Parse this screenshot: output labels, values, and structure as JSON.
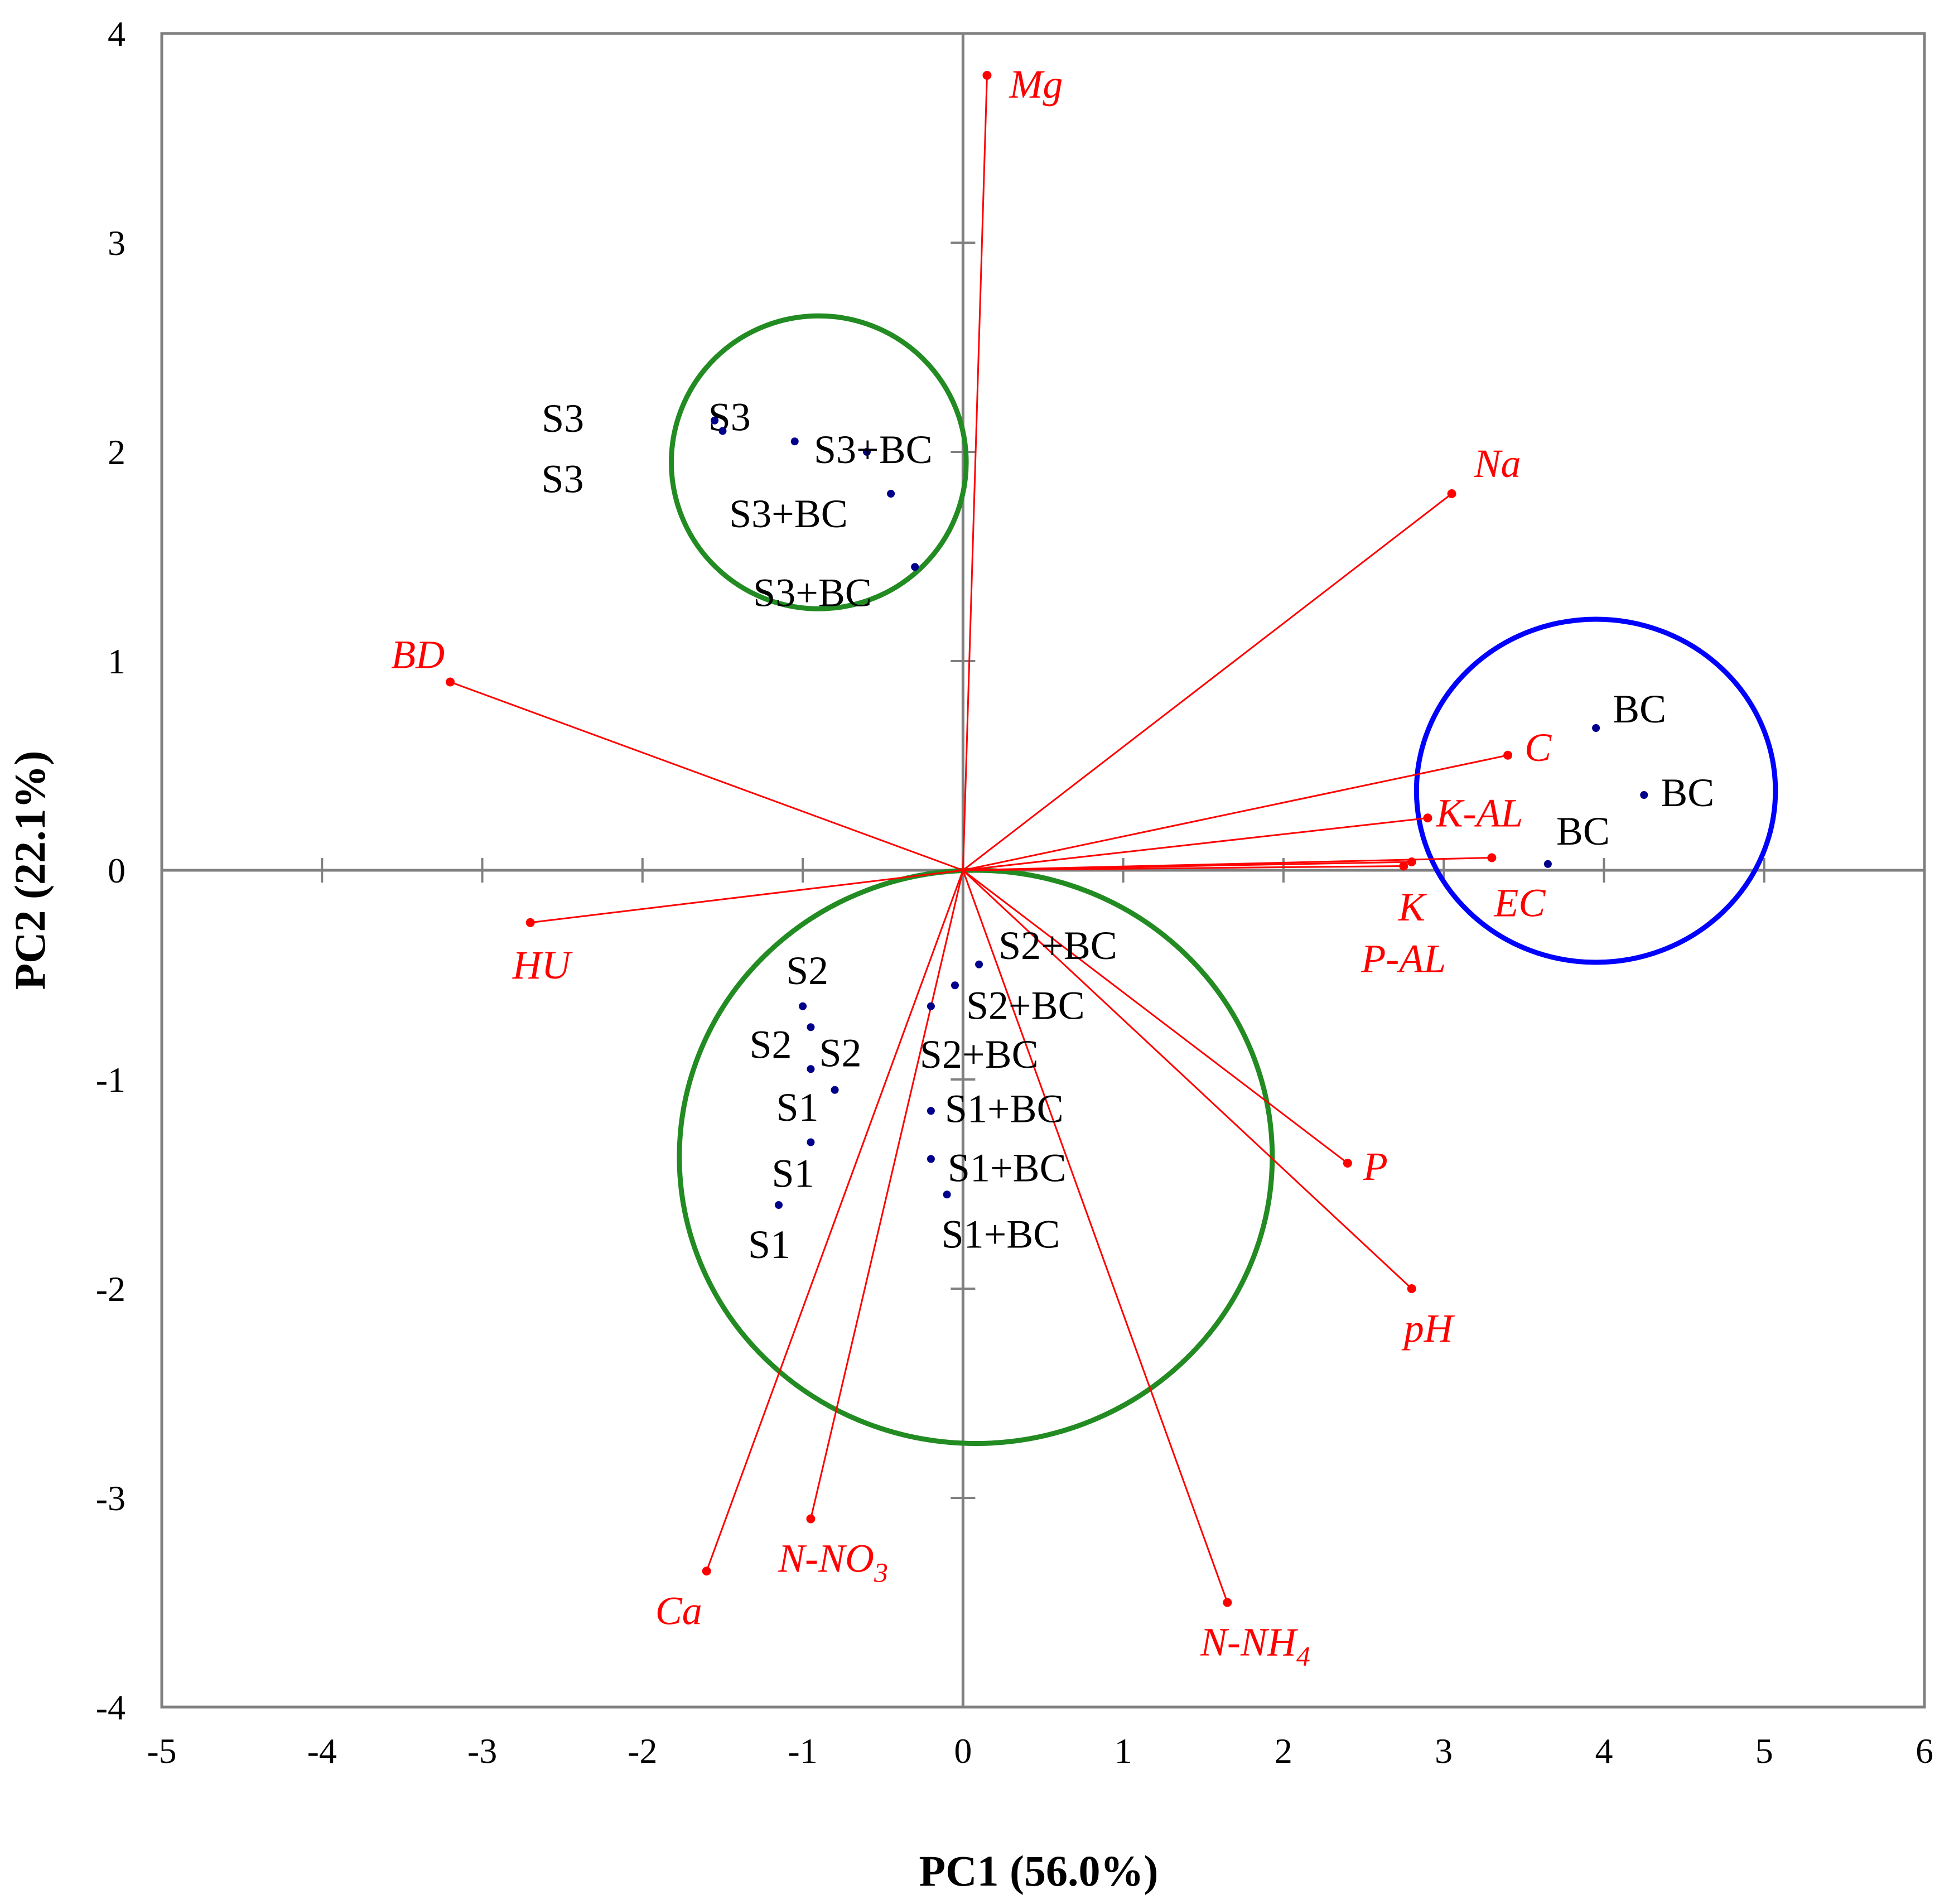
{
  "chart_data": {
    "type": "scatter",
    "subtype": "pca-biplot",
    "xlabel": "PC1 (56.0%)",
    "ylabel": "PC2 (22.1%)",
    "xlim": [
      -5,
      6
    ],
    "ylim": [
      -4,
      4
    ],
    "xticks": [
      -5,
      -4,
      -3,
      -2,
      -1,
      0,
      1,
      2,
      3,
      4,
      5,
      6
    ],
    "yticks": [
      -4,
      -3,
      -2,
      -1,
      0,
      1,
      2,
      3,
      4
    ],
    "grid": false,
    "colors": {
      "loadings": "#ff0000",
      "scores": "#00008b",
      "group_s3": "#228b22",
      "group_s12": "#228b22",
      "group_bc": "#0000ff"
    },
    "loadings": [
      {
        "name": "Mg",
        "display": "Mg",
        "x": 0.15,
        "y": 3.8
      },
      {
        "name": "Na",
        "display": "Na",
        "x": 3.05,
        "y": 1.8
      },
      {
        "name": "BD",
        "display": "BD",
        "x": -3.2,
        "y": 0.9
      },
      {
        "name": "C",
        "display": "C",
        "x": 3.4,
        "y": 0.55
      },
      {
        "name": "K-AL",
        "display": "K-AL",
        "x": 2.9,
        "y": 0.25
      },
      {
        "name": "EC",
        "display": "EC",
        "x": 3.3,
        "y": 0.06
      },
      {
        "name": "K",
        "display": "K",
        "x": 2.8,
        "y": 0.04
      },
      {
        "name": "P-AL",
        "display": "P-AL",
        "x": 2.75,
        "y": 0.02
      },
      {
        "name": "HU",
        "display": "HU",
        "x": -2.7,
        "y": -0.25
      },
      {
        "name": "P",
        "display": "P",
        "x": 2.4,
        "y": -1.4
      },
      {
        "name": "pH",
        "display": "pH",
        "x": 2.8,
        "y": -2.0
      },
      {
        "name": "Ca",
        "display": "Ca",
        "x": -1.6,
        "y": -3.35
      },
      {
        "name": "N-NO3",
        "display": "N-NO",
        "sub": "3",
        "x": -0.95,
        "y": -3.1
      },
      {
        "name": "N-NH4",
        "display": "N-NH",
        "sub": "4",
        "x": 1.65,
        "y": -3.5
      }
    ],
    "scores": [
      {
        "label": "S3",
        "x": -1.55,
        "y": 2.15
      },
      {
        "label": "S3",
        "x": -1.05,
        "y": 2.05
      },
      {
        "label": "S3",
        "x": -1.5,
        "y": 2.1
      },
      {
        "label": "S3+BC",
        "x": -0.6,
        "y": 2.0
      },
      {
        "label": "S3+BC",
        "x": -0.45,
        "y": 1.8
      },
      {
        "label": "S3+BC",
        "x": -0.3,
        "y": 1.45
      },
      {
        "label": "BC",
        "x": 3.95,
        "y": 0.68
      },
      {
        "label": "BC",
        "x": 4.25,
        "y": 0.36
      },
      {
        "label": "BC",
        "x": 3.65,
        "y": 0.03
      },
      {
        "label": "S2",
        "x": -1.0,
        "y": -0.65
      },
      {
        "label": "S2",
        "x": -0.95,
        "y": -0.75
      },
      {
        "label": "S2",
        "x": -0.95,
        "y": -0.95
      },
      {
        "label": "S2+BC",
        "x": 0.1,
        "y": -0.45
      },
      {
        "label": "S2+BC",
        "x": -0.05,
        "y": -0.55
      },
      {
        "label": "S2+BC",
        "x": -0.2,
        "y": -0.65
      },
      {
        "label": "S1",
        "x": -0.8,
        "y": -1.05
      },
      {
        "label": "S1",
        "x": -0.95,
        "y": -1.3
      },
      {
        "label": "S1",
        "x": -1.15,
        "y": -1.6
      },
      {
        "label": "S1+BC",
        "x": -0.2,
        "y": -1.15
      },
      {
        "label": "S1+BC",
        "x": -0.2,
        "y": -1.38
      },
      {
        "label": "S1+BC",
        "x": -0.1,
        "y": -1.55
      }
    ],
    "groups": [
      {
        "name": "S3 cluster",
        "cx": -0.9,
        "cy": 1.95,
        "r_x": 0.92,
        "r_y": 0.7,
        "color": "green"
      },
      {
        "name": "S1/S2 cluster",
        "cx": 0.08,
        "cy": -1.37,
        "r_x": 1.85,
        "r_y": 1.37,
        "color": "green"
      },
      {
        "name": "BC cluster",
        "cx": 3.95,
        "cy": 0.38,
        "r_x": 1.12,
        "r_y": 0.82,
        "color": "blue"
      }
    ]
  }
}
